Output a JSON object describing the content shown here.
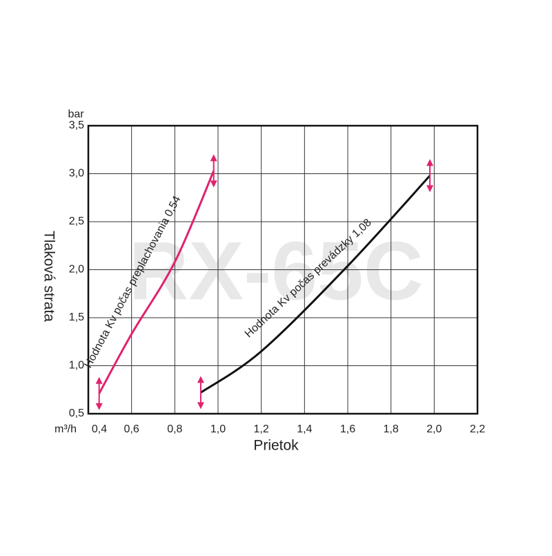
{
  "chart_data": {
    "type": "line",
    "watermark": "RX-65C",
    "xlabel": "Prietok",
    "ylabel": "Tlaková strata",
    "x_unit": "m³/h",
    "y_unit": "bar",
    "xlim": [
      0.4,
      2.2
    ],
    "xticks": [
      {
        "value": 0.4,
        "label": "0,4"
      },
      {
        "value": 0.6,
        "label": "0,6"
      },
      {
        "value": 0.8,
        "label": "0,8"
      },
      {
        "value": 1.0,
        "label": "1,0"
      },
      {
        "value": 1.2,
        "label": "1,2"
      },
      {
        "value": 1.4,
        "label": "1,4"
      },
      {
        "value": 1.6,
        "label": "1,6"
      },
      {
        "value": 1.8,
        "label": "1,8"
      },
      {
        "value": 2.0,
        "label": "2,0"
      },
      {
        "value": 2.2,
        "label": "2,2"
      }
    ],
    "ylim": [
      0.5,
      3.5
    ],
    "yticks": [
      {
        "value": 0.5,
        "label": "0,5"
      },
      {
        "value": 1.0,
        "label": "1,0"
      },
      {
        "value": 1.5,
        "label": "1,5"
      },
      {
        "value": 2.0,
        "label": "2,0"
      },
      {
        "value": 2.5,
        "label": "2,5"
      },
      {
        "value": 3.0,
        "label": "3,0"
      },
      {
        "value": 3.5,
        "label": "3,5"
      }
    ],
    "grid": true,
    "series": [
      {
        "name": "Hodnota Kv počas preplachovania 0,54",
        "color": "#e0226e",
        "x": [
          0.45,
          0.6,
          0.8,
          0.98
        ],
        "values": [
          0.71,
          1.33,
          2.08,
          3.03
        ]
      },
      {
        "name": "Hodnota Kv počas prevádzky 1,08",
        "color": "#111111",
        "x": [
          0.92,
          1.2,
          1.6,
          1.98
        ],
        "values": [
          0.72,
          1.15,
          2.04,
          2.98
        ]
      }
    ],
    "marker_color": "#e0226e"
  }
}
